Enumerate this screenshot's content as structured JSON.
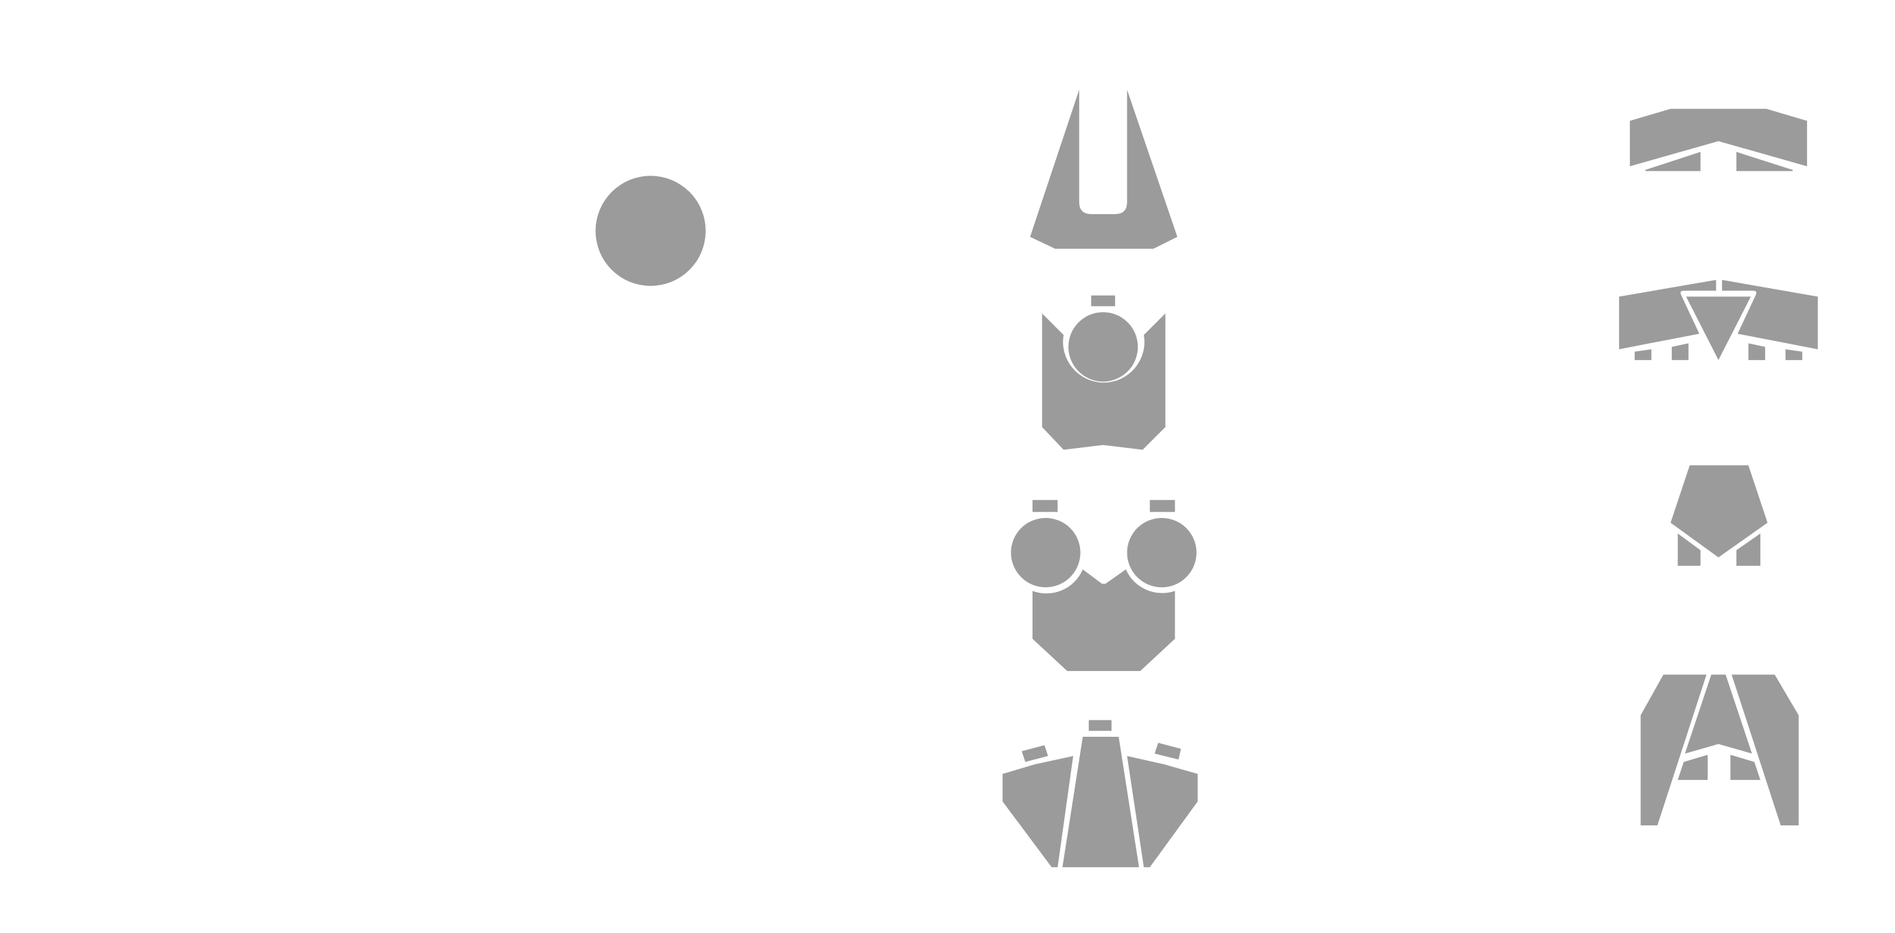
{
  "palette": {
    "background": "#ffffff",
    "piece_fill": "#9b9b9b"
  },
  "palette_pieces": [
    {
      "name": "core-circle-piece"
    },
    {
      "name": "thruster-nozzle-piece"
    },
    {
      "name": "single-turret-body-piece"
    },
    {
      "name": "double-turret-body-piece"
    },
    {
      "name": "wing-pod-piece"
    },
    {
      "name": "swept-wing-piece"
    },
    {
      "name": "split-wing-piece"
    },
    {
      "name": "pentagon-hull-piece"
    },
    {
      "name": "twin-fin-piece"
    }
  ]
}
